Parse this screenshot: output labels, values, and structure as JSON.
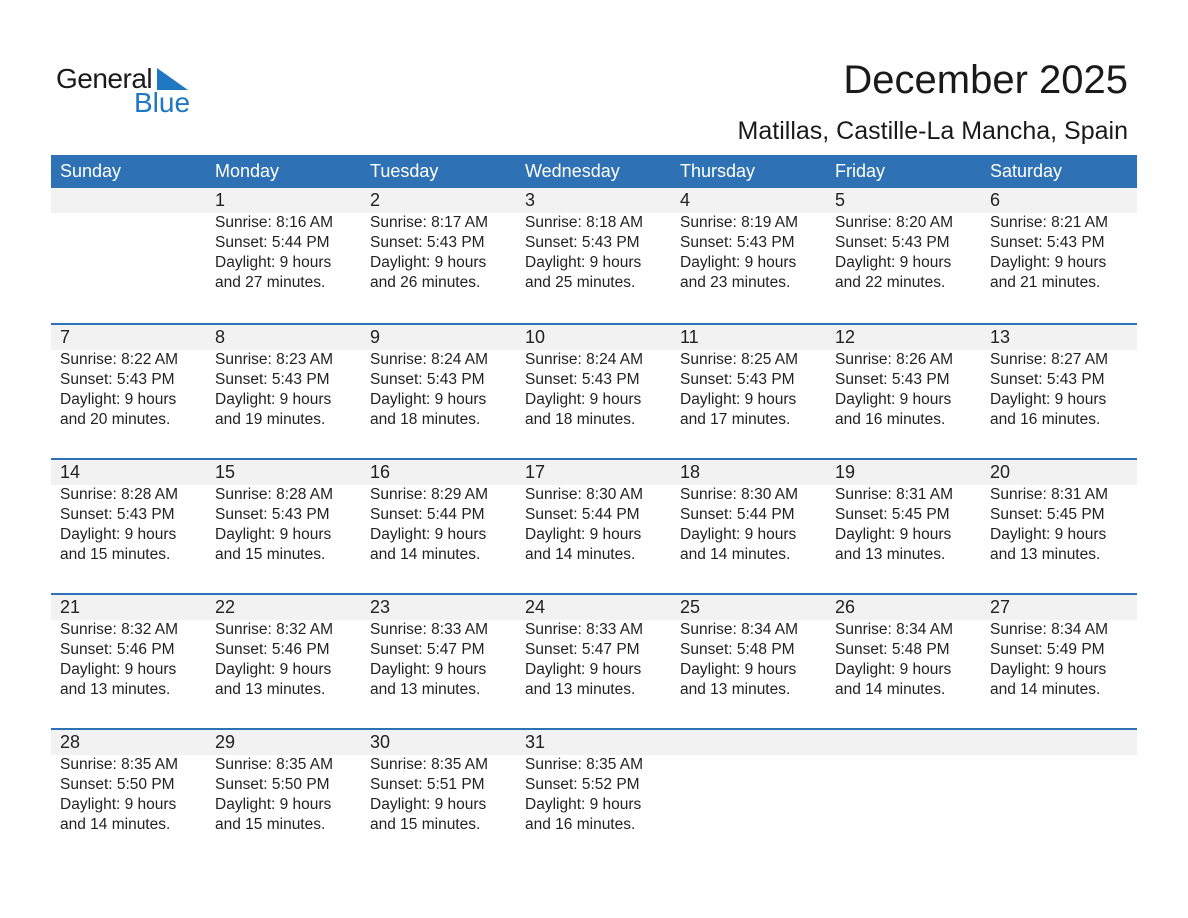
{
  "logo": {
    "line1": "General",
    "line2": "Blue",
    "accent": "#1f78c1"
  },
  "title": "December 2025",
  "subtitle": "Matillas, Castille-La Mancha, Spain",
  "colors": {
    "header": "#2e72b5",
    "band": "#f2f2f2"
  },
  "weekdays": [
    "Sunday",
    "Monday",
    "Tuesday",
    "Wednesday",
    "Thursday",
    "Friday",
    "Saturday"
  ],
  "weeks": [
    [
      null,
      {
        "day": "1",
        "sunrise": "Sunrise: 8:16 AM",
        "sunset": "Sunset: 5:44 PM",
        "daylight1": "Daylight: 9 hours",
        "daylight2": "and 27 minutes."
      },
      {
        "day": "2",
        "sunrise": "Sunrise: 8:17 AM",
        "sunset": "Sunset: 5:43 PM",
        "daylight1": "Daylight: 9 hours",
        "daylight2": "and 26 minutes."
      },
      {
        "day": "3",
        "sunrise": "Sunrise: 8:18 AM",
        "sunset": "Sunset: 5:43 PM",
        "daylight1": "Daylight: 9 hours",
        "daylight2": "and 25 minutes."
      },
      {
        "day": "4",
        "sunrise": "Sunrise: 8:19 AM",
        "sunset": "Sunset: 5:43 PM",
        "daylight1": "Daylight: 9 hours",
        "daylight2": "and 23 minutes."
      },
      {
        "day": "5",
        "sunrise": "Sunrise: 8:20 AM",
        "sunset": "Sunset: 5:43 PM",
        "daylight1": "Daylight: 9 hours",
        "daylight2": "and 22 minutes."
      },
      {
        "day": "6",
        "sunrise": "Sunrise: 8:21 AM",
        "sunset": "Sunset: 5:43 PM",
        "daylight1": "Daylight: 9 hours",
        "daylight2": "and 21 minutes."
      }
    ],
    [
      {
        "day": "7",
        "sunrise": "Sunrise: 8:22 AM",
        "sunset": "Sunset: 5:43 PM",
        "daylight1": "Daylight: 9 hours",
        "daylight2": "and 20 minutes."
      },
      {
        "day": "8",
        "sunrise": "Sunrise: 8:23 AM",
        "sunset": "Sunset: 5:43 PM",
        "daylight1": "Daylight: 9 hours",
        "daylight2": "and 19 minutes."
      },
      {
        "day": "9",
        "sunrise": "Sunrise: 8:24 AM",
        "sunset": "Sunset: 5:43 PM",
        "daylight1": "Daylight: 9 hours",
        "daylight2": "and 18 minutes."
      },
      {
        "day": "10",
        "sunrise": "Sunrise: 8:24 AM",
        "sunset": "Sunset: 5:43 PM",
        "daylight1": "Daylight: 9 hours",
        "daylight2": "and 18 minutes."
      },
      {
        "day": "11",
        "sunrise": "Sunrise: 8:25 AM",
        "sunset": "Sunset: 5:43 PM",
        "daylight1": "Daylight: 9 hours",
        "daylight2": "and 17 minutes."
      },
      {
        "day": "12",
        "sunrise": "Sunrise: 8:26 AM",
        "sunset": "Sunset: 5:43 PM",
        "daylight1": "Daylight: 9 hours",
        "daylight2": "and 16 minutes."
      },
      {
        "day": "13",
        "sunrise": "Sunrise: 8:27 AM",
        "sunset": "Sunset: 5:43 PM",
        "daylight1": "Daylight: 9 hours",
        "daylight2": "and 16 minutes."
      }
    ],
    [
      {
        "day": "14",
        "sunrise": "Sunrise: 8:28 AM",
        "sunset": "Sunset: 5:43 PM",
        "daylight1": "Daylight: 9 hours",
        "daylight2": "and 15 minutes."
      },
      {
        "day": "15",
        "sunrise": "Sunrise: 8:28 AM",
        "sunset": "Sunset: 5:43 PM",
        "daylight1": "Daylight: 9 hours",
        "daylight2": "and 15 minutes."
      },
      {
        "day": "16",
        "sunrise": "Sunrise: 8:29 AM",
        "sunset": "Sunset: 5:44 PM",
        "daylight1": "Daylight: 9 hours",
        "daylight2": "and 14 minutes."
      },
      {
        "day": "17",
        "sunrise": "Sunrise: 8:30 AM",
        "sunset": "Sunset: 5:44 PM",
        "daylight1": "Daylight: 9 hours",
        "daylight2": "and 14 minutes."
      },
      {
        "day": "18",
        "sunrise": "Sunrise: 8:30 AM",
        "sunset": "Sunset: 5:44 PM",
        "daylight1": "Daylight: 9 hours",
        "daylight2": "and 14 minutes."
      },
      {
        "day": "19",
        "sunrise": "Sunrise: 8:31 AM",
        "sunset": "Sunset: 5:45 PM",
        "daylight1": "Daylight: 9 hours",
        "daylight2": "and 13 minutes."
      },
      {
        "day": "20",
        "sunrise": "Sunrise: 8:31 AM",
        "sunset": "Sunset: 5:45 PM",
        "daylight1": "Daylight: 9 hours",
        "daylight2": "and 13 minutes."
      }
    ],
    [
      {
        "day": "21",
        "sunrise": "Sunrise: 8:32 AM",
        "sunset": "Sunset: 5:46 PM",
        "daylight1": "Daylight: 9 hours",
        "daylight2": "and 13 minutes."
      },
      {
        "day": "22",
        "sunrise": "Sunrise: 8:32 AM",
        "sunset": "Sunset: 5:46 PM",
        "daylight1": "Daylight: 9 hours",
        "daylight2": "and 13 minutes."
      },
      {
        "day": "23",
        "sunrise": "Sunrise: 8:33 AM",
        "sunset": "Sunset: 5:47 PM",
        "daylight1": "Daylight: 9 hours",
        "daylight2": "and 13 minutes."
      },
      {
        "day": "24",
        "sunrise": "Sunrise: 8:33 AM",
        "sunset": "Sunset: 5:47 PM",
        "daylight1": "Daylight: 9 hours",
        "daylight2": "and 13 minutes."
      },
      {
        "day": "25",
        "sunrise": "Sunrise: 8:34 AM",
        "sunset": "Sunset: 5:48 PM",
        "daylight1": "Daylight: 9 hours",
        "daylight2": "and 13 minutes."
      },
      {
        "day": "26",
        "sunrise": "Sunrise: 8:34 AM",
        "sunset": "Sunset: 5:48 PM",
        "daylight1": "Daylight: 9 hours",
        "daylight2": "and 14 minutes."
      },
      {
        "day": "27",
        "sunrise": "Sunrise: 8:34 AM",
        "sunset": "Sunset: 5:49 PM",
        "daylight1": "Daylight: 9 hours",
        "daylight2": "and 14 minutes."
      }
    ],
    [
      {
        "day": "28",
        "sunrise": "Sunrise: 8:35 AM",
        "sunset": "Sunset: 5:50 PM",
        "daylight1": "Daylight: 9 hours",
        "daylight2": "and 14 minutes."
      },
      {
        "day": "29",
        "sunrise": "Sunrise: 8:35 AM",
        "sunset": "Sunset: 5:50 PM",
        "daylight1": "Daylight: 9 hours",
        "daylight2": "and 15 minutes."
      },
      {
        "day": "30",
        "sunrise": "Sunrise: 8:35 AM",
        "sunset": "Sunset: 5:51 PM",
        "daylight1": "Daylight: 9 hours",
        "daylight2": "and 15 minutes."
      },
      {
        "day": "31",
        "sunrise": "Sunrise: 8:35 AM",
        "sunset": "Sunset: 5:52 PM",
        "daylight1": "Daylight: 9 hours",
        "daylight2": "and 16 minutes."
      },
      null,
      null,
      null
    ]
  ]
}
